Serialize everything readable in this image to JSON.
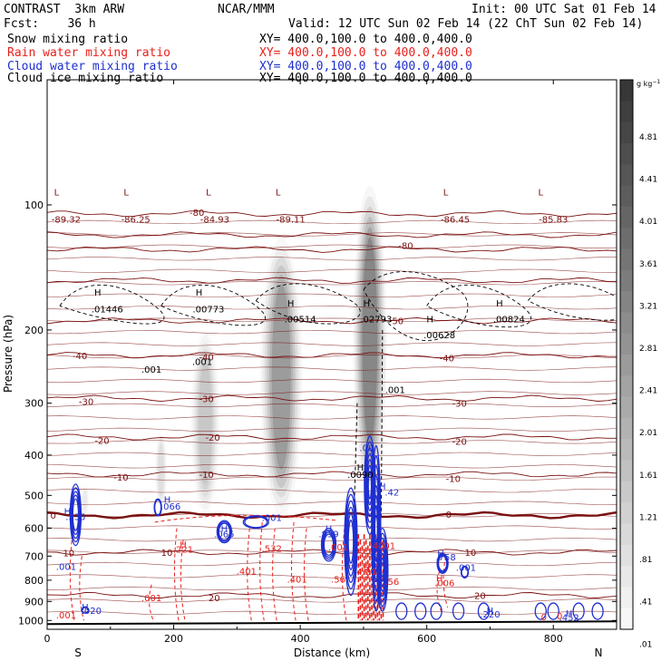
{
  "header": {
    "model_title": "CONTRAST  3km ARW",
    "forecast": "Fcst:    36 h",
    "center": "NCAR/MMM",
    "init": "Init: 00 UTC Sat 01 Feb 14",
    "valid": "Valid: 12 UTC Sun 02 Feb 14 (22 ChT Sun 02 Feb 14)"
  },
  "fields": [
    {
      "name": "Snow mixing ratio",
      "xy": "XY= 400.0,100.0 to 400.0,400.0",
      "color": "#000000"
    },
    {
      "name": "Rain water mixing ratio",
      "xy": "XY= 400.0,100.0 to 400.0,400.0",
      "color": "#e8201c"
    },
    {
      "name": "Cloud water mixing ratio",
      "xy": "XY= 400.0,100.0 to 400.0,400.0",
      "color": "#1f2fd0"
    },
    {
      "name": "Cloud ice mixing ratio",
      "xy": "XY= 400.0,100.0 to 400.0,400.0",
      "color": "#000000"
    }
  ],
  "colors": {
    "temperature": "#7a1010",
    "freezing_line": "#6e0c0c",
    "rain": "#e8201c",
    "cloud_water": "#1f2fd0",
    "ice": "#000000",
    "snow_shade": "#333333"
  },
  "chart_data": {
    "type": "vertical cross-section",
    "xlabel": "Distance (km)",
    "ylabel": "Pressure (hPa)",
    "xlim": [
      0,
      900
    ],
    "ylim": [
      1050,
      50
    ],
    "y_scale": "log",
    "x_ticks": [
      0,
      200,
      400,
      600,
      800
    ],
    "y_ticks": [
      100,
      200,
      300,
      400,
      500,
      600,
      700,
      800,
      900,
      1000
    ],
    "end_labels": {
      "left": "S",
      "right": "N"
    },
    "colorbar": {
      "unit": "g kg",
      "unit_exponent": "−1",
      "labels": [
        "4.81",
        "4.41",
        "4.01",
        "3.61",
        "3.21",
        "2.81",
        "2.41",
        "2.01",
        "1.61",
        "1.21",
        ".81",
        ".41",
        ".01"
      ],
      "levels": 26
    },
    "snow_plumes": [
      {
        "x": 370,
        "p_top": 120,
        "p_bot": 560,
        "width_km": 50,
        "max": 4.0
      },
      {
        "x": 510,
        "p_top": 90,
        "p_bot": 500,
        "width_km": 40,
        "max": 4.8
      },
      {
        "x": 250,
        "p_top": 200,
        "p_bot": 560,
        "width_km": 35,
        "max": 2.2
      },
      {
        "x": 180,
        "p_top": 350,
        "p_bot": 540,
        "width_km": 15,
        "max": 1.2
      },
      {
        "x": 60,
        "p_top": 470,
        "p_bot": 560,
        "width_km": 10,
        "max": 0.8
      }
    ],
    "temperature_contours": [
      {
        "label": "-80",
        "p": 105
      },
      {
        "label": "-80",
        "p": 118
      },
      {
        "label": "-70",
        "p": 128
      },
      {
        "label": "-60",
        "p": 152
      },
      {
        "label": "-50",
        "p": 190
      },
      {
        "label": "-40",
        "p": 230
      },
      {
        "label": "-30",
        "p": 292
      },
      {
        "label": "-20",
        "p": 362
      },
      {
        "label": "-10",
        "p": 445
      },
      {
        "label": "0",
        "p": 558
      },
      {
        "label": "10",
        "p": 685
      },
      {
        "label": "20",
        "p": 870
      }
    ],
    "temperature_labels": [
      {
        "text": "-80",
        "x": 225,
        "p": 104
      },
      {
        "text": "-80",
        "x": 555,
        "p": 125
      },
      {
        "text": "-50",
        "x": 540,
        "p": 190
      },
      {
        "text": "-40",
        "x": 40,
        "p": 230
      },
      {
        "text": "-40",
        "x": 240,
        "p": 232
      },
      {
        "text": "-40",
        "x": 620,
        "p": 233
      },
      {
        "text": "-30",
        "x": 50,
        "p": 297
      },
      {
        "text": "-30",
        "x": 240,
        "p": 292
      },
      {
        "text": "-30",
        "x": 640,
        "p": 300
      },
      {
        "text": "-20",
        "x": 75,
        "p": 368
      },
      {
        "text": "-20",
        "x": 250,
        "p": 362
      },
      {
        "text": "-20",
        "x": 640,
        "p": 370
      },
      {
        "text": "-10",
        "x": 105,
        "p": 452
      },
      {
        "text": "-10",
        "x": 240,
        "p": 445
      },
      {
        "text": "-10",
        "x": 630,
        "p": 455
      },
      {
        "text": "0",
        "x": 5,
        "p": 558
      },
      {
        "text": "0",
        "x": 630,
        "p": 555
      },
      {
        "text": "10",
        "x": 25,
        "p": 687
      },
      {
        "text": "10",
        "x": 180,
        "p": 685
      },
      {
        "text": "10",
        "x": 660,
        "p": 685
      },
      {
        "text": "20",
        "x": 255,
        "p": 880
      },
      {
        "text": "20",
        "x": 675,
        "p": 870
      }
    ],
    "extrema_labels": [
      {
        "text": "L",
        "x": 15,
        "p": 93,
        "color": "temperature"
      },
      {
        "text": "-89.32",
        "x": 30,
        "p": 108,
        "color": "temperature"
      },
      {
        "text": "L",
        "x": 125,
        "p": 93,
        "color": "temperature"
      },
      {
        "text": "-86.25",
        "x": 140,
        "p": 108,
        "color": "temperature"
      },
      {
        "text": "L",
        "x": 255,
        "p": 93,
        "color": "temperature"
      },
      {
        "text": "-84.93",
        "x": 265,
        "p": 108,
        "color": "temperature"
      },
      {
        "text": "L",
        "x": 365,
        "p": 93,
        "color": "temperature"
      },
      {
        "text": "-89.11",
        "x": 385,
        "p": 108,
        "color": "temperature"
      },
      {
        "text": "L",
        "x": 630,
        "p": 93,
        "color": "temperature"
      },
      {
        "text": "-86.45",
        "x": 645,
        "p": 108,
        "color": "temperature"
      },
      {
        "text": "L",
        "x": 780,
        "p": 93,
        "color": "temperature"
      },
      {
        "text": "-85.83",
        "x": 800,
        "p": 108,
        "color": "temperature"
      },
      {
        "text": "H",
        "x": 80,
        "p": 162,
        "color": "ice"
      },
      {
        "text": ".01446",
        "x": 95,
        "p": 178,
        "color": "ice"
      },
      {
        "text": "H",
        "x": 240,
        "p": 162,
        "color": "ice"
      },
      {
        "text": ".00773",
        "x": 255,
        "p": 178,
        "color": "ice"
      },
      {
        "text": "H",
        "x": 385,
        "p": 172,
        "color": "ice"
      },
      {
        "text": ".00514",
        "x": 400,
        "p": 188,
        "color": "ice"
      },
      {
        "text": "H",
        "x": 505,
        "p": 172,
        "color": "ice"
      },
      {
        "text": ".02793",
        "x": 520,
        "p": 188,
        "color": "ice"
      },
      {
        "text": "H",
        "x": 605,
        "p": 188,
        "color": "ice"
      },
      {
        "text": ".00628",
        "x": 620,
        "p": 205,
        "color": "ice"
      },
      {
        "text": "H",
        "x": 715,
        "p": 172,
        "color": "ice"
      },
      {
        "text": ".00824",
        "x": 730,
        "p": 188,
        "color": "ice"
      },
      {
        "text": ".001",
        "x": 165,
        "p": 248,
        "color": "ice"
      },
      {
        "text": ".001",
        "x": 245,
        "p": 238,
        "color": "ice"
      },
      {
        "text": ".001",
        "x": 550,
        "p": 278,
        "color": "ice"
      },
      {
        "text": "H",
        "x": 495,
        "p": 427,
        "color": "ice"
      },
      {
        "text": ".0090",
        "x": 495,
        "p": 445,
        "color": "ice"
      },
      {
        "text": "H",
        "x": 190,
        "p": 510,
        "color": "cloud_water"
      },
      {
        "text": ".066",
        "x": 195,
        "p": 530,
        "color": "cloud_water"
      },
      {
        "text": "H",
        "x": 32,
        "p": 545,
        "color": "cloud_water"
      },
      {
        "text": ".535",
        "x": 45,
        "p": 562,
        "color": "cloud_water"
      },
      {
        "text": ".001",
        "x": 355,
        "p": 565,
        "color": "cloud_water"
      },
      {
        "text": "H",
        "x": 280,
        "p": 600,
        "color": "cloud_water"
      },
      {
        "text": ".065",
        "x": 280,
        "p": 618,
        "color": "cloud_water"
      },
      {
        "text": "H",
        "x": 445,
        "p": 600,
        "color": "cloud_water"
      },
      {
        "text": ".839",
        "x": 445,
        "p": 618,
        "color": "cloud_water"
      },
      {
        "text": "H",
        "x": 530,
        "p": 475,
        "color": "cloud_water"
      },
      {
        "text": ".42",
        "x": 545,
        "p": 490,
        "color": "cloud_water"
      },
      {
        "text": ".00",
        "x": 505,
        "p": 383,
        "color": "cloud_water"
      },
      {
        "text": "H",
        "x": 622,
        "p": 688,
        "color": "cloud_water"
      },
      {
        "text": ".758",
        "x": 630,
        "p": 703,
        "color": "cloud_water"
      },
      {
        "text": ".001",
        "x": 662,
        "p": 745,
        "color": "cloud_water"
      },
      {
        "text": ".001",
        "x": 30,
        "p": 740,
        "color": "cloud_water"
      },
      {
        "text": "H",
        "x": 60,
        "p": 925,
        "color": "cloud_water"
      },
      {
        "text": ".020",
        "x": 70,
        "p": 945,
        "color": "cloud_water"
      },
      {
        "text": "H",
        "x": 700,
        "p": 945,
        "color": "cloud_water"
      },
      {
        "text": ".220",
        "x": 700,
        "p": 965,
        "color": "cloud_water"
      },
      {
        "text": "H",
        "x": 825,
        "p": 960,
        "color": "cloud_water"
      },
      {
        "text": ".452",
        "x": 825,
        "p": 980,
        "color": "cloud_water"
      },
      {
        "text": "H",
        "x": 215,
        "p": 655,
        "color": "rain"
      },
      {
        "text": ".221",
        "x": 215,
        "p": 673,
        "color": "rain"
      },
      {
        "text": ".532",
        "x": 355,
        "p": 670,
        "color": "rain"
      },
      {
        "text": ".001",
        "x": 460,
        "p": 665,
        "color": "rain"
      },
      {
        "text": ".4001",
        "x": 530,
        "p": 660,
        "color": "rain"
      },
      {
        "text": ".401",
        "x": 315,
        "p": 760,
        "color": "rain"
      },
      {
        "text": ".401",
        "x": 395,
        "p": 795,
        "color": "rain"
      },
      {
        "text": ".56",
        "x": 460,
        "p": 795,
        "color": "rain"
      },
      {
        "text": ".56",
        "x": 545,
        "p": 805,
        "color": "rain"
      },
      {
        "text": "H",
        "x": 505,
        "p": 745,
        "color": "rain"
      },
      {
        "text": "4.21",
        "x": 505,
        "p": 762,
        "color": "rain"
      },
      {
        "text": "H",
        "x": 620,
        "p": 790,
        "color": "rain"
      },
      {
        "text": ".006",
        "x": 628,
        "p": 810,
        "color": "rain"
      },
      {
        "text": ".001",
        "x": 165,
        "p": 880,
        "color": "rain"
      },
      {
        "text": ".001",
        "x": 30,
        "p": 970,
        "color": "rain"
      },
      {
        "text": "0",
        "x": 785,
        "p": 978,
        "color": "rain"
      },
      {
        "text": "0",
        "x": 810,
        "p": 975,
        "color": "rain"
      }
    ]
  }
}
